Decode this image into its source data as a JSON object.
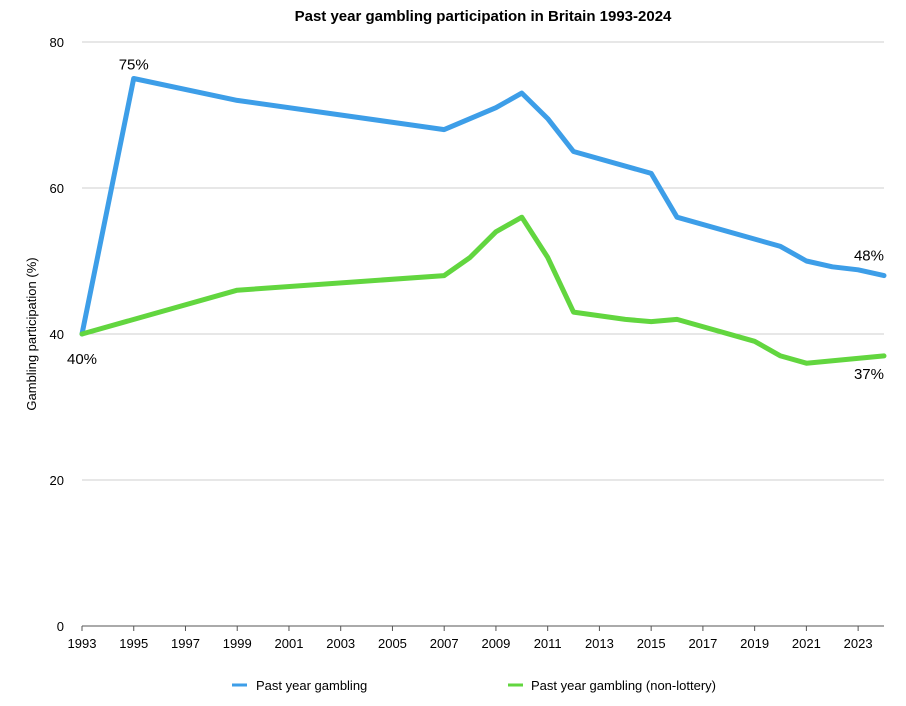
{
  "chart_data": {
    "type": "line",
    "title": "Past year gambling participation in Britain 1993-2024",
    "xlabel": "",
    "ylabel": "Gambling participation (%)",
    "xlim": [
      1993,
      2024
    ],
    "ylim": [
      0,
      80
    ],
    "y_ticks": [
      0,
      20,
      40,
      60,
      80
    ],
    "x_ticks": [
      1993,
      1995,
      1997,
      1999,
      2001,
      2003,
      2005,
      2007,
      2009,
      2011,
      2013,
      2015,
      2017,
      2019,
      2021,
      2023
    ],
    "grid": true,
    "legend_position": "bottom",
    "series": [
      {
        "name": "Past year gambling",
        "color": "#3d9ee8",
        "points": [
          {
            "x": 1993,
            "y": 40
          },
          {
            "x": 1995,
            "y": 75
          },
          {
            "x": 1999,
            "y": 72
          },
          {
            "x": 2007,
            "y": 68
          },
          {
            "x": 2009,
            "y": 71
          },
          {
            "x": 2010,
            "y": 73
          },
          {
            "x": 2011,
            "y": 69.5
          },
          {
            "x": 2012,
            "y": 65
          },
          {
            "x": 2015,
            "y": 62
          },
          {
            "x": 2016,
            "y": 56
          },
          {
            "x": 2020,
            "y": 52
          },
          {
            "x": 2021,
            "y": 50
          },
          {
            "x": 2022,
            "y": 49.2
          },
          {
            "x": 2023,
            "y": 48.8
          },
          {
            "x": 2024,
            "y": 48
          }
        ]
      },
      {
        "name": "Past year gambling (non-lottery)",
        "color": "#62d63f",
        "points": [
          {
            "x": 1993,
            "y": 40
          },
          {
            "x": 1999,
            "y": 46
          },
          {
            "x": 2007,
            "y": 48
          },
          {
            "x": 2008,
            "y": 50.5
          },
          {
            "x": 2009,
            "y": 54
          },
          {
            "x": 2010,
            "y": 56
          },
          {
            "x": 2011,
            "y": 50.5
          },
          {
            "x": 2012,
            "y": 43
          },
          {
            "x": 2014,
            "y": 42
          },
          {
            "x": 2015,
            "y": 41.7
          },
          {
            "x": 2016,
            "y": 42
          },
          {
            "x": 2019,
            "y": 39
          },
          {
            "x": 2020,
            "y": 37
          },
          {
            "x": 2021,
            "y": 36
          },
          {
            "x": 2024,
            "y": 37
          }
        ]
      }
    ],
    "annotations": [
      {
        "text": "40%",
        "x": 1993,
        "y": 40,
        "series": 0
      },
      {
        "text": "75%",
        "x": 1995,
        "y": 75,
        "series": 0
      },
      {
        "text": "48%",
        "x": 2024,
        "y": 48,
        "series": 0
      },
      {
        "text": "37%",
        "x": 2024,
        "y": 37,
        "series": 1
      }
    ]
  }
}
